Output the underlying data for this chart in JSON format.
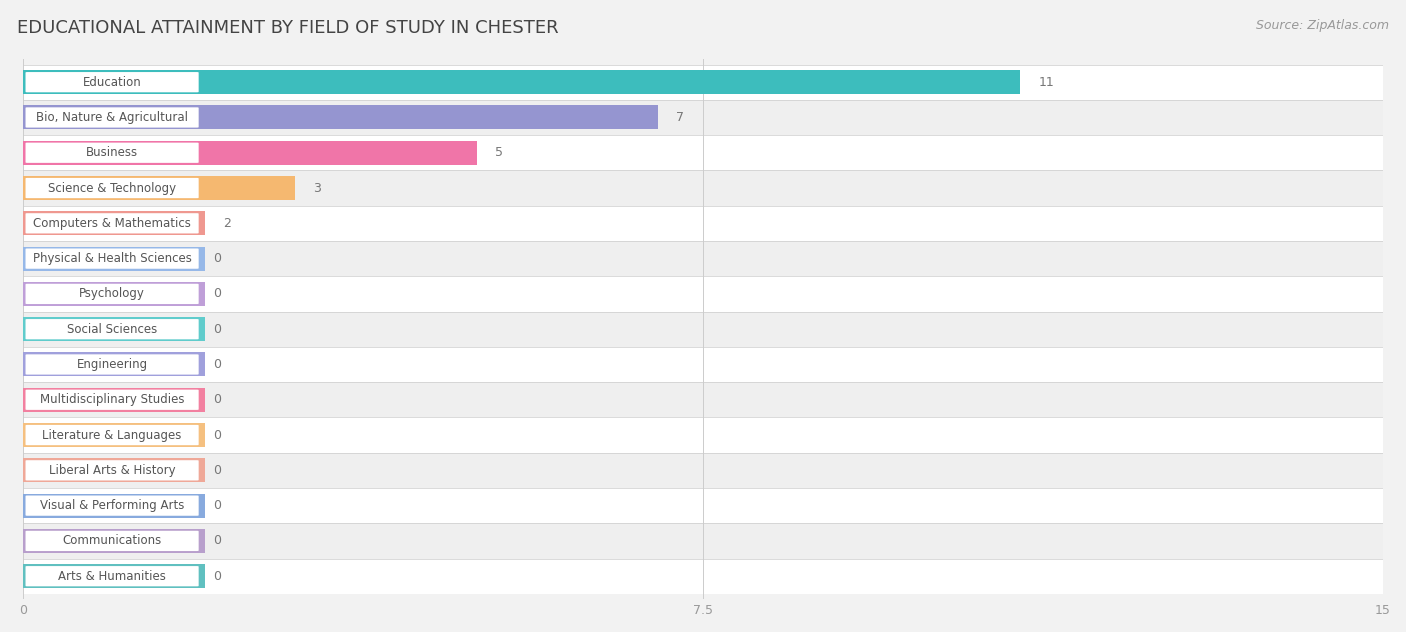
{
  "title": "EDUCATIONAL ATTAINMENT BY FIELD OF STUDY IN CHESTER",
  "source": "Source: ZipAtlas.com",
  "categories": [
    "Education",
    "Bio, Nature & Agricultural",
    "Business",
    "Science & Technology",
    "Computers & Mathematics",
    "Physical & Health Sciences",
    "Psychology",
    "Social Sciences",
    "Engineering",
    "Multidisciplinary Studies",
    "Literature & Languages",
    "Liberal Arts & History",
    "Visual & Performing Arts",
    "Communications",
    "Arts & Humanities"
  ],
  "values": [
    11,
    7,
    5,
    3,
    2,
    0,
    0,
    0,
    0,
    0,
    0,
    0,
    0,
    0,
    0
  ],
  "bar_colors": [
    "#3DBDBD",
    "#9595D0",
    "#F075A8",
    "#F5B870",
    "#EF9890",
    "#96B8E8",
    "#BF9FD8",
    "#60CCCC",
    "#A0A0DC",
    "#F280A0",
    "#F5C080",
    "#EFA898",
    "#88AADE",
    "#B89FCC",
    "#60C0C0"
  ],
  "xlim": [
    0,
    15
  ],
  "xticks": [
    0,
    7.5,
    15
  ],
  "background_color": "#f2f2f2",
  "row_colors": [
    "#ffffff",
    "#efefef"
  ],
  "title_fontsize": 13,
  "source_fontsize": 9,
  "bar_height": 0.68,
  "bar_label_fontsize": 9,
  "category_fontsize": 8.5,
  "pill_color": "white",
  "pill_text_color": "#555555",
  "value_label_color": "#777777"
}
